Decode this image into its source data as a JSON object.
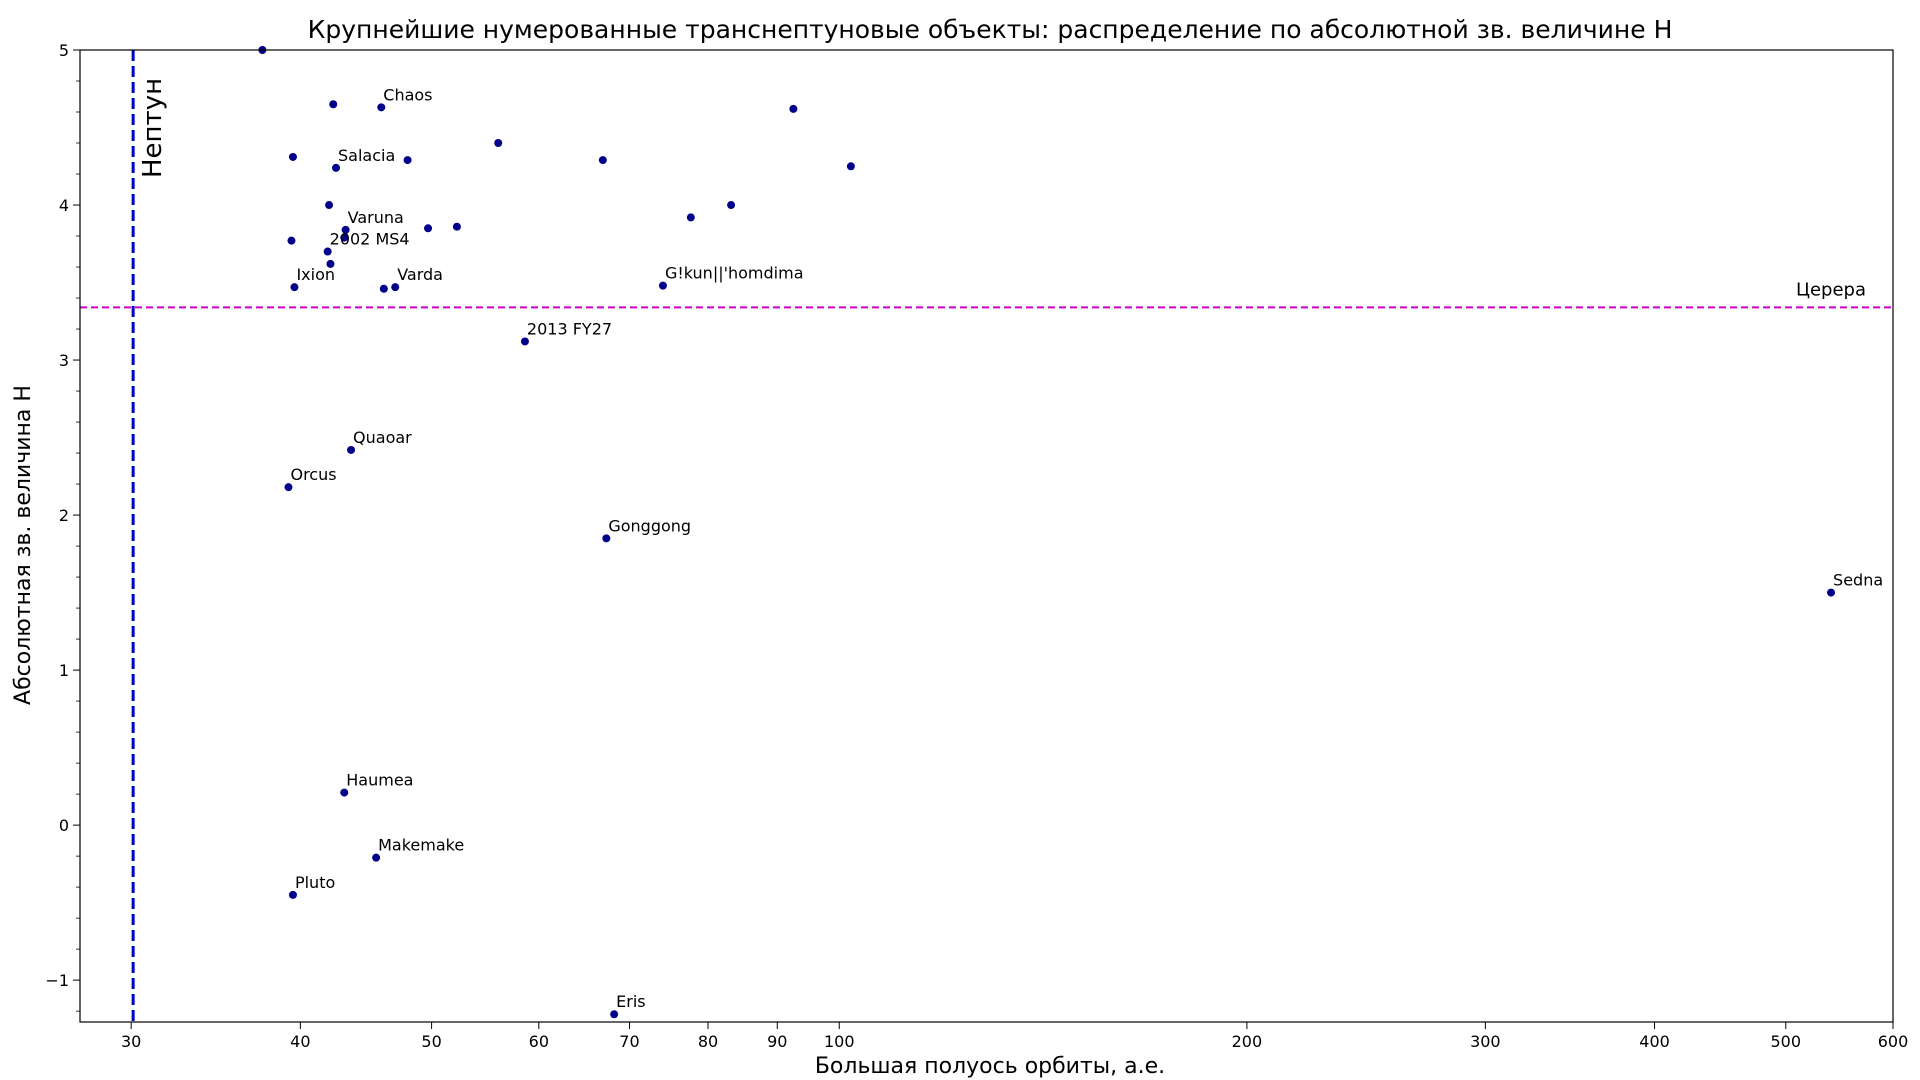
{
  "chart_data": {
    "type": "scatter",
    "title": "Крупнейшие нумерованные транснептуновые объекты: распределение по абсолютной зв. величине H",
    "xlabel": "Большая полуось орбиты, а.е.",
    "ylabel": "Абсолютная зв. величина H",
    "xscale": "log",
    "xlim": [
      27.5,
      600
    ],
    "ylim": [
      -1.27,
      5
    ],
    "grid": false,
    "xticks": [
      {
        "value": 30,
        "label": "30"
      },
      {
        "value": 40,
        "label": "40"
      },
      {
        "value": 50,
        "label": "50"
      },
      {
        "value": 60,
        "label": "60"
      },
      {
        "value": 70,
        "label": "70"
      },
      {
        "value": 80,
        "label": "80"
      },
      {
        "value": 90,
        "label": "90"
      },
      {
        "value": 100,
        "label": "100"
      },
      {
        "value": 200,
        "label": "200"
      },
      {
        "value": 300,
        "label": "300"
      },
      {
        "value": 400,
        "label": "400"
      },
      {
        "value": 500,
        "label": "500"
      },
      {
        "value": 600,
        "label": "600"
      }
    ],
    "yticks": [
      {
        "value": -1,
        "label": "−1"
      },
      {
        "value": 0,
        "label": "0"
      },
      {
        "value": 1,
        "label": "1"
      },
      {
        "value": 2,
        "label": "2"
      },
      {
        "value": 3,
        "label": "3"
      },
      {
        "value": 4,
        "label": "4"
      },
      {
        "value": 5,
        "label": "5"
      }
    ],
    "yminor_step": 0.2,
    "point_color": "#00008B",
    "reference_lines": [
      {
        "orientation": "vertical",
        "value": 30.1,
        "label": "Нептун",
        "color": "#0000CD",
        "style": "dashed"
      },
      {
        "orientation": "horizontal",
        "value": 3.34,
        "label": "Церера",
        "color": "#CC00CC",
        "style": "dashed"
      }
    ],
    "points": [
      {
        "x": 37.5,
        "y": 5.0,
        "name": ""
      },
      {
        "x": 42.3,
        "y": 4.65,
        "name": ""
      },
      {
        "x": 45.9,
        "y": 4.63,
        "name": "Chaos"
      },
      {
        "x": 39.5,
        "y": 4.31,
        "name": ""
      },
      {
        "x": 42.5,
        "y": 4.24,
        "name": "Salacia"
      },
      {
        "x": 48.0,
        "y": 4.29,
        "name": ""
      },
      {
        "x": 56.0,
        "y": 4.4,
        "name": ""
      },
      {
        "x": 66.9,
        "y": 4.29,
        "name": ""
      },
      {
        "x": 92.5,
        "y": 4.62,
        "name": ""
      },
      {
        "x": 102.0,
        "y": 4.25,
        "name": ""
      },
      {
        "x": 42.0,
        "y": 4.0,
        "name": ""
      },
      {
        "x": 83.2,
        "y": 4.0,
        "name": ""
      },
      {
        "x": 77.7,
        "y": 3.92,
        "name": ""
      },
      {
        "x": 39.4,
        "y": 3.77,
        "name": ""
      },
      {
        "x": 43.2,
        "y": 3.84,
        "name": "Varuna"
      },
      {
        "x": 43.1,
        "y": 3.79,
        "name": ""
      },
      {
        "x": 49.7,
        "y": 3.85,
        "name": ""
      },
      {
        "x": 52.2,
        "y": 3.86,
        "name": ""
      },
      {
        "x": 41.9,
        "y": 3.7,
        "name": "2002 MS4"
      },
      {
        "x": 42.1,
        "y": 3.62,
        "name": ""
      },
      {
        "x": 39.6,
        "y": 3.47,
        "name": "Ixion"
      },
      {
        "x": 46.1,
        "y": 3.46,
        "name": ""
      },
      {
        "x": 47.0,
        "y": 3.47,
        "name": "Varda"
      },
      {
        "x": 74.1,
        "y": 3.48,
        "name": "G!kun||'homdima"
      },
      {
        "x": 58.6,
        "y": 3.12,
        "name": "2013 FY27"
      },
      {
        "x": 43.6,
        "y": 2.42,
        "name": "Quaoar"
      },
      {
        "x": 39.2,
        "y": 2.18,
        "name": "Orcus"
      },
      {
        "x": 67.3,
        "y": 1.85,
        "name": "Gonggong"
      },
      {
        "x": 540,
        "y": 1.5,
        "name": "Sedna"
      },
      {
        "x": 43.1,
        "y": 0.21,
        "name": "Haumea"
      },
      {
        "x": 45.5,
        "y": -0.21,
        "name": "Makemake"
      },
      {
        "x": 39.5,
        "y": -0.45,
        "name": "Pluto"
      },
      {
        "x": 68.2,
        "y": -1.22,
        "name": "Eris"
      }
    ]
  }
}
